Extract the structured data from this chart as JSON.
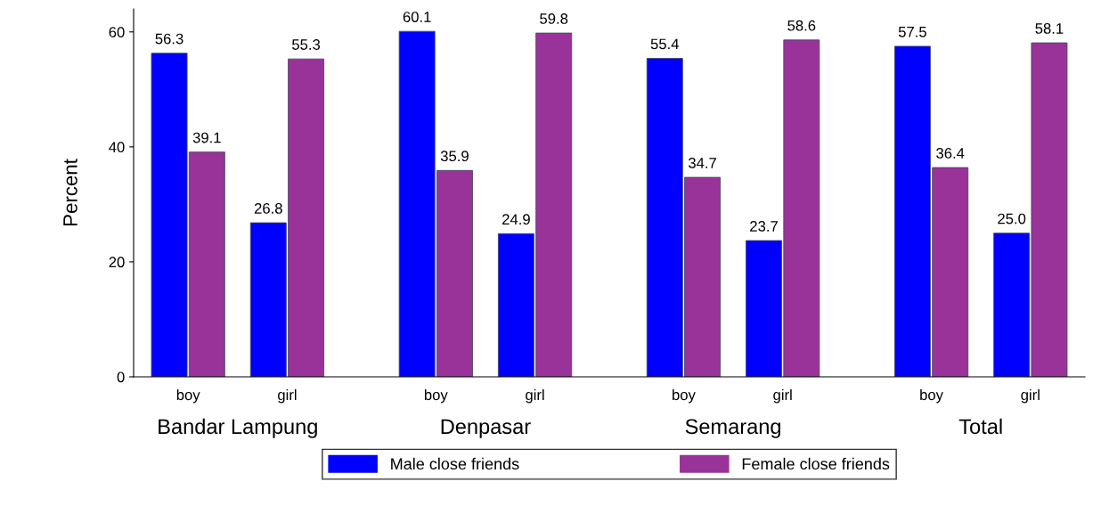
{
  "chart_data": {
    "type": "bar",
    "ylabel": "Percent",
    "categories": [
      "boy",
      "girl",
      "boy",
      "girl",
      "boy",
      "girl",
      "boy",
      "girl"
    ],
    "annotations": [
      "Bandar Lampung",
      "Denpasar",
      "Semarang",
      "Total"
    ],
    "series": [
      {
        "name": "Male close friends",
        "color": "#0000ff",
        "values": [
          56.3,
          26.8,
          60.1,
          24.9,
          55.4,
          23.7,
          57.5,
          25.0
        ]
      },
      {
        "name": "Female close friends",
        "color": "#993399",
        "values": [
          39.1,
          55.3,
          35.9,
          59.8,
          34.7,
          58.6,
          36.4,
          58.1
        ]
      }
    ],
    "value_labels": [
      [
        "56.3",
        "26.8",
        "60.1",
        "24.9",
        "55.4",
        "23.7",
        "57.5",
        "25.0"
      ],
      [
        "39.1",
        "55.3",
        "35.9",
        "59.8",
        "34.7",
        "58.6",
        "36.4",
        "58.1"
      ]
    ],
    "ylim": [
      0,
      64
    ],
    "yticks": [
      0,
      20,
      40,
      60
    ],
    "grid": false,
    "legend": "bottom"
  }
}
